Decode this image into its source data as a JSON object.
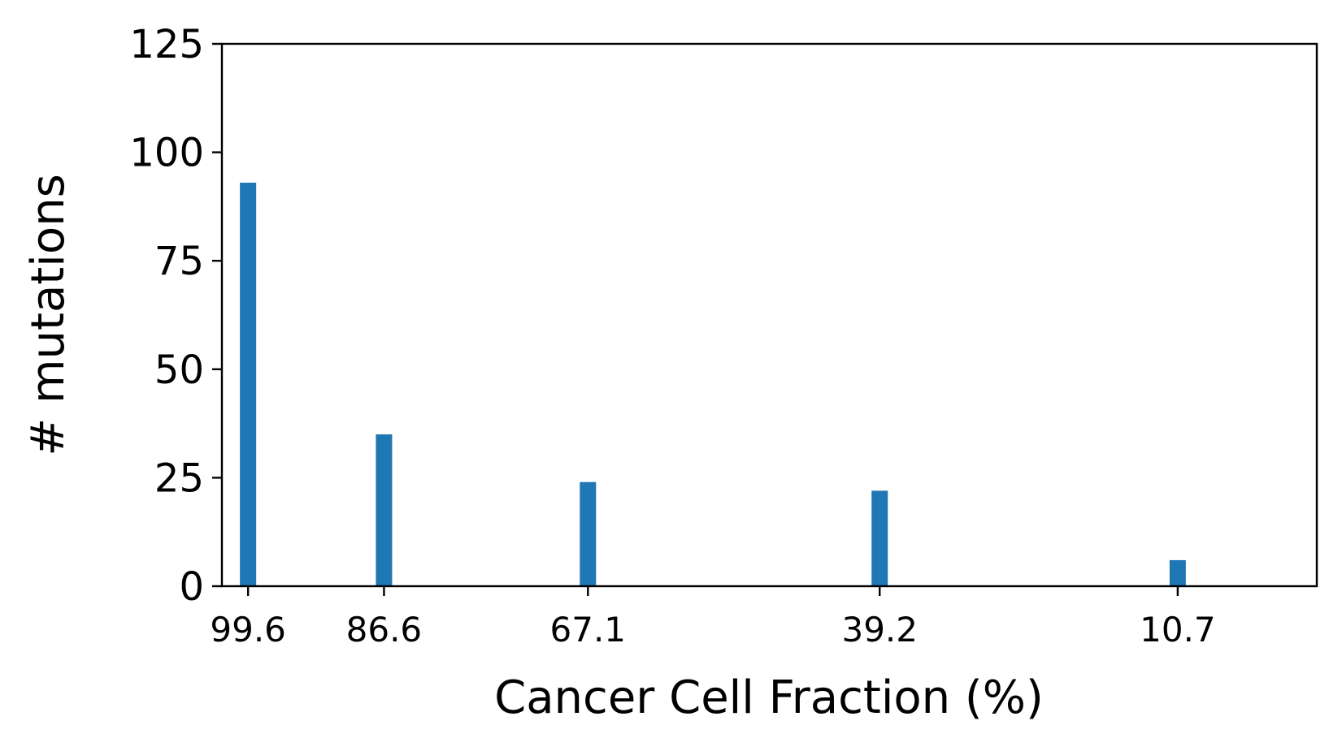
{
  "chart_data": {
    "type": "bar",
    "title": "",
    "xlabel": "Cancer Cell Fraction (%)",
    "ylabel": "# mutations",
    "x_axis": "reversed",
    "xlim": [
      102.1,
      -2.6
    ],
    "ylim": [
      0,
      125
    ],
    "yticks": [
      0,
      25,
      50,
      75,
      100,
      125
    ],
    "categories": [
      "99.6",
      "86.6",
      "67.1",
      "39.2",
      "10.7"
    ],
    "x": [
      99.6,
      86.6,
      67.1,
      39.2,
      10.7
    ],
    "values": [
      93,
      35,
      24,
      22,
      6
    ],
    "bar_color": "#1f77b4",
    "grid": false,
    "legend": false
  }
}
